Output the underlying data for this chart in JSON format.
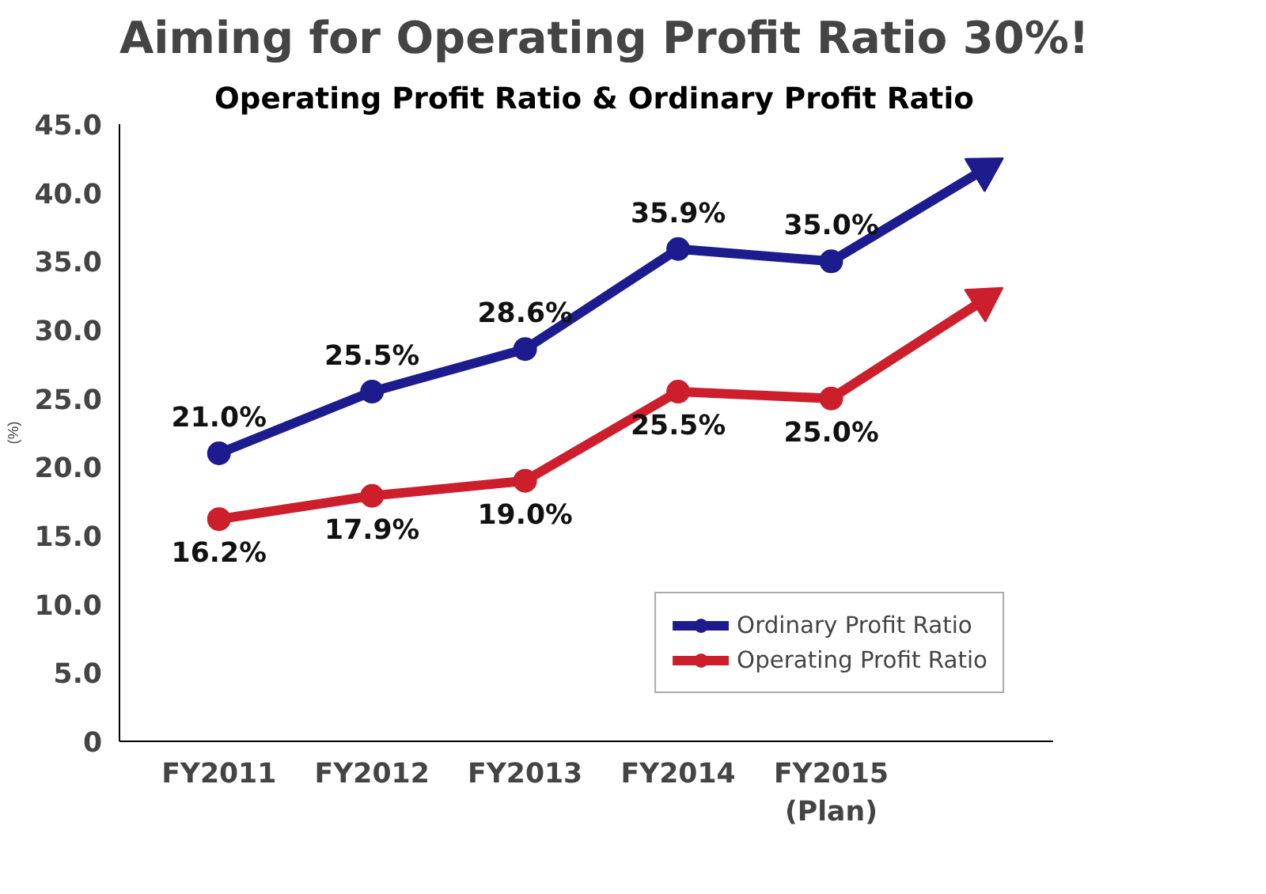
{
  "chart_data": {
    "type": "line",
    "title": "Aiming for Operating Profit Ratio 30%!",
    "subtitle": "Operating Profit Ratio & Ordinary Profit Ratio",
    "ylabel": "(%)",
    "categories": [
      "FY2011",
      "FY2012",
      "FY2013",
      "FY2014",
      "FY2015\n(Plan)",
      null
    ],
    "series": [
      {
        "name": "Ordinary Profit Ratio",
        "color": "#1c1c8e",
        "values": [
          21.0,
          25.5,
          28.6,
          35.9,
          35.0,
          41.7
        ],
        "value_labels": [
          "21.0%",
          "25.5%",
          "28.6%",
          "35.9%",
          "35.0%",
          null
        ]
      },
      {
        "name": "Operating Profit Ratio",
        "color": "#cc1f2b",
        "values": [
          16.2,
          17.9,
          19.0,
          25.5,
          25.0,
          32.2
        ],
        "value_labels": [
          "16.2%",
          "17.9%",
          "19.0%",
          "25.5%",
          "25.0%",
          null
        ]
      }
    ],
    "ylim": [
      0,
      45
    ],
    "yticks": [
      {
        "value": 0,
        "label": "0"
      },
      {
        "value": 5,
        "label": "5.0"
      },
      {
        "value": 10,
        "label": "10.0"
      },
      {
        "value": 15,
        "label": "15.0"
      },
      {
        "value": 20,
        "label": "20.0"
      },
      {
        "value": 25,
        "label": "25.0"
      },
      {
        "value": 30,
        "label": "30.0"
      },
      {
        "value": 35,
        "label": "35.0"
      },
      {
        "value": 40,
        "label": "40.0"
      },
      {
        "value": 45,
        "label": "45.0"
      }
    ],
    "grid": false,
    "legend": "bottom right",
    "marker": "circle",
    "line_style": "solid"
  }
}
